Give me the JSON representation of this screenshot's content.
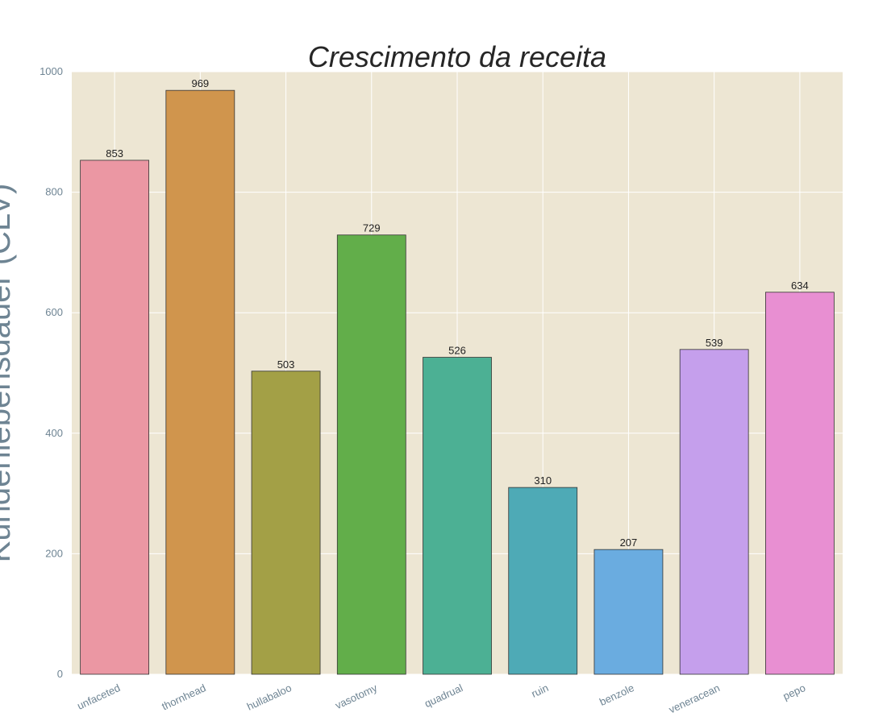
{
  "chart_data": {
    "type": "bar",
    "title": "Crescimento da receita",
    "xlabel": "",
    "ylabel": "Kundenlebensdauer (CLV)",
    "categories": [
      "unfaceted",
      "thornhead",
      "hullabaloo",
      "vasotomy",
      "quadrual",
      "ruin",
      "benzole",
      "veneracean",
      "pepo"
    ],
    "values": [
      853,
      969,
      503,
      729,
      526,
      310,
      207,
      539,
      634
    ],
    "colors": [
      "#eb97a3",
      "#d0954d",
      "#a3a046",
      "#62ae4a",
      "#4cb094",
      "#4eaab6",
      "#6aace0",
      "#c59fec",
      "#e88fd2"
    ],
    "ylim": [
      0,
      1000
    ],
    "yticks": [
      0,
      200,
      400,
      600,
      800,
      1000
    ],
    "grid": true,
    "plot_background": "#ede6d3",
    "grid_color": "#ffffff",
    "data_labels": true
  }
}
